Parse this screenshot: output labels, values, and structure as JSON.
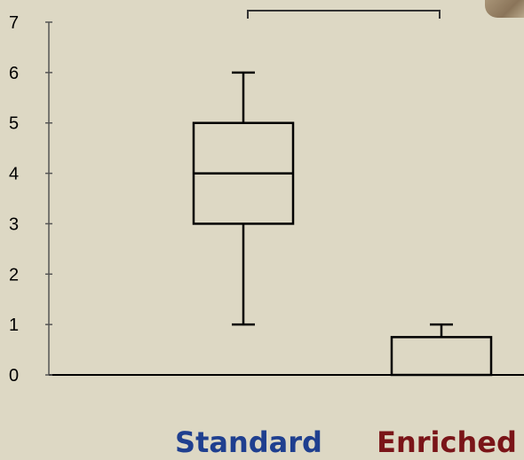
{
  "chart_data": {
    "type": "box",
    "title": "",
    "xlabel": "",
    "ylabel": "",
    "ylim": [
      0,
      7
    ],
    "yticks": [
      0,
      1,
      2,
      3,
      4,
      5,
      6,
      7
    ],
    "categories": [
      "Standard",
      "Enriched"
    ],
    "category_colors": [
      "#1f3f8f",
      "#7a1418"
    ],
    "boxes": [
      {
        "category": "Standard",
        "whisker_low": 1,
        "q1": 3,
        "median": 4,
        "q3": 5,
        "whisker_high": 6
      },
      {
        "category": "Enriched",
        "whisker_low": 0,
        "q1": 0,
        "median": 0,
        "q3": 0.75,
        "whisker_high": 1
      }
    ],
    "significance_bracket": {
      "between": [
        "Standard",
        "Enriched"
      ]
    },
    "grid": false,
    "legend": "none"
  }
}
